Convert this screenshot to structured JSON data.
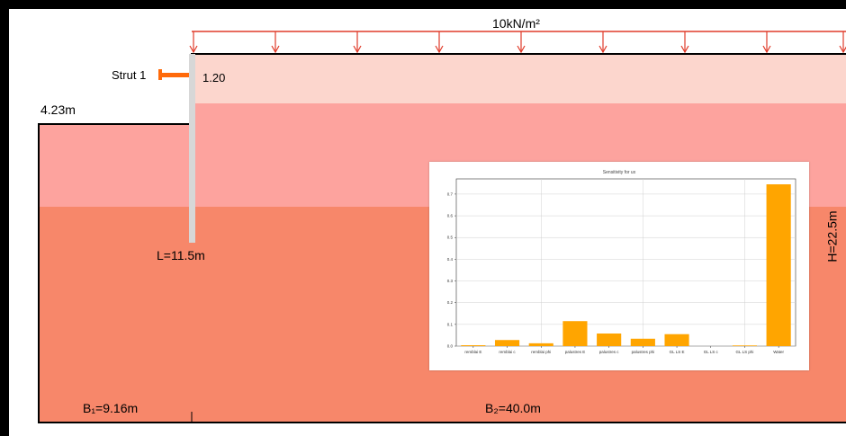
{
  "load": {
    "label": "10kN/m²"
  },
  "strut": {
    "label": "Strut 1",
    "value": "1.20"
  },
  "left_height": "4.23m",
  "wall_length": "L=11.5m",
  "total_height": "H=22.5m",
  "widths": {
    "b1": "B₁=9.16m",
    "b2": "B₂=40.0m"
  },
  "colors": {
    "background": "#000000",
    "white": "#ffffff",
    "layer_top": "#fcd6cd",
    "layer_mid": "#fda39e",
    "layer_bottom": "#f7876a",
    "load_arrows": "#e03b2a",
    "strut": "#ff6a0a",
    "wall": "#d7d7d7",
    "bars": "#ffa500"
  },
  "chart_data": {
    "type": "bar",
    "title": "Sensitivity for ux",
    "categories": [
      "remblai E",
      "remblai c",
      "remblai phi",
      "palustres E",
      "palustres c",
      "palustres phi",
      "GL LS E",
      "GL LS c",
      "GL LS phi",
      "Water"
    ],
    "values": [
      0.004,
      0.028,
      0.013,
      0.115,
      0.058,
      0.034,
      0.055,
      0.0,
      0.003,
      0.745
    ],
    "ylim": [
      0,
      0.77
    ],
    "yticks": [
      0.0,
      0.1,
      0.2,
      0.3,
      0.4,
      0.5,
      0.6,
      0.7
    ],
    "ytick_labels": [
      "0.0",
      "0.1",
      "0.2",
      "0.3",
      "0.4",
      "0.5",
      "0.6",
      "0.7"
    ],
    "grid": true,
    "xlabel": "",
    "ylabel": ""
  }
}
